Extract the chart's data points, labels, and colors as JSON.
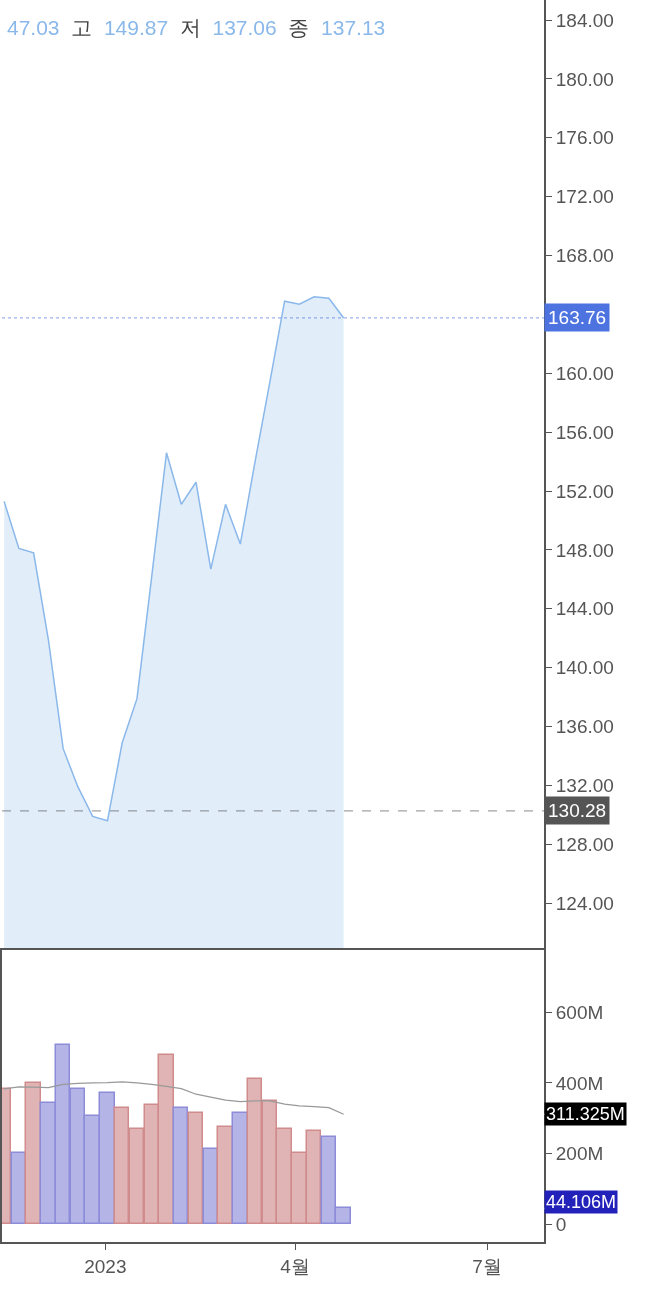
{
  "chart_data": [
    {
      "type": "area",
      "title": "47.03 고 149.87 저 137.06 종 137.13",
      "x": [
        "2022-11-14",
        "2022-11-21",
        "2022-11-28",
        "2022-12-05",
        "2022-12-12",
        "2022-12-19",
        "2022-12-26",
        "2023-01-02",
        "2023-01-09",
        "2023-01-16",
        "2023-01-23",
        "2023-01-30",
        "2023-02-06",
        "2023-02-13",
        "2023-02-20",
        "2023-02-27",
        "2023-03-06",
        "2023-03-13",
        "2023-03-20",
        "2023-03-27",
        "2023-04-03",
        "2023-04-10",
        "2023-04-17",
        "2023-04-24"
      ],
      "series": [
        {
          "color": "#8ab8ea",
          "values": [
            151.3,
            148.1,
            147.8,
            141.9,
            134.5,
            131.9,
            129.9,
            129.6,
            134.9,
            137.9,
            146.2,
            154.6,
            151.1,
            152.6,
            146.7,
            151.1,
            148.4,
            154.0,
            159.4,
            164.9,
            164.7,
            165.2,
            165.1,
            163.76
          ]
        }
      ],
      "xlim": [
        "2022-11-13",
        "2023-07-28"
      ],
      "tick_labels": "y",
      "ylim": [
        120.96,
        185.36
      ],
      "yticks": [
        {
          "value": 124,
          "label": "124.00"
        },
        {
          "value": 128,
          "label": "128.00"
        },
        {
          "value": 132,
          "label": "132.00"
        },
        {
          "value": 136,
          "label": "136.00"
        },
        {
          "value": 140,
          "label": "140.00"
        },
        {
          "value": 144,
          "label": "144.00"
        },
        {
          "value": 148,
          "label": "148.00"
        },
        {
          "value": 152,
          "label": "152.00"
        },
        {
          "value": 156,
          "label": "156.00"
        },
        {
          "value": 160,
          "label": "160.00"
        },
        {
          "value": 164,
          "label": null
        },
        {
          "value": 168,
          "label": "168.00"
        },
        {
          "value": 172,
          "label": "172.00"
        },
        {
          "value": 176,
          "label": "176.00"
        },
        {
          "value": 180,
          "label": "180.00"
        },
        {
          "value": 184,
          "label": "184.00"
        }
      ],
      "ref_lines": [
        {
          "axis": "y",
          "value": 163.76,
          "label": "163.76",
          "color": "#4d73e0",
          "line_style": "dotted"
        },
        {
          "axis": "y",
          "value": 130.28,
          "label": "130.28",
          "color": "#555555",
          "line_style": "dashed"
        }
      ]
    },
    {
      "type": "bar",
      "x": [
        "2022-11-14",
        "2022-11-21",
        "2022-11-28",
        "2022-12-05",
        "2022-12-12",
        "2022-12-19",
        "2022-12-26",
        "2023-01-02",
        "2023-01-09",
        "2023-01-16",
        "2023-01-23",
        "2023-01-30",
        "2023-02-06",
        "2023-02-13",
        "2023-02-20",
        "2023-02-27",
        "2023-03-06",
        "2023-03-13",
        "2023-03-20",
        "2023-03-27",
        "2023-04-03",
        "2023-04-10",
        "2023-04-17",
        "2023-04-24"
      ],
      "series": [
        {
          "type": "bar",
          "values": [
            383,
            201,
            400,
            343,
            508,
            383,
            306,
            372,
            329,
            270,
            338,
            479,
            329,
            315,
            213,
            275,
            315,
            411,
            349,
            270,
            201,
            264,
            247,
            44.106
          ],
          "colors": [
            "#d08c8c",
            "#8c8cd9",
            "#d08c8c",
            "#8c8cd9",
            "#8c8cd9",
            "#8c8cd9",
            "#8c8cd9",
            "#8c8cd9",
            "#d08c8c",
            "#d08c8c",
            "#d08c8c",
            "#d08c8c",
            "#8c8cd9",
            "#d08c8c",
            "#8c8cd9",
            "#d08c8c",
            "#8c8cd9",
            "#d08c8c",
            "#d08c8c",
            "#d08c8c",
            "#d08c8c",
            "#d08c8c",
            "#8c8cd9",
            "#8c8cd9"
          ]
        },
        {
          "type": "line",
          "color": "#999999",
          "values": [
            383,
            389,
            388,
            387,
            396,
            399,
            400,
            401,
            403,
            400,
            396,
            390,
            384,
            368,
            360,
            351,
            347,
            349,
            349,
            340,
            335,
            333,
            330,
            311.325
          ]
        }
      ],
      "annotations": [
        "44.106M",
        "311.325M"
      ],
      "xlim": [
        "2022-11-13",
        "2023-07-28"
      ],
      "xticks": [
        {
          "value": "2023-01-01",
          "label": "2023"
        },
        {
          "value": "2023-04-01",
          "label": "4월"
        },
        {
          "value": "2023-07-01",
          "label": "7월"
        }
      ],
      "ylim": [
        -51,
        777
      ],
      "yticks": [
        {
          "value": 0,
          "label": "0"
        },
        {
          "value": 200,
          "label": "200M"
        },
        {
          "value": 400,
          "label": "400M"
        },
        {
          "value": 600,
          "label": "600M"
        }
      ]
    }
  ]
}
